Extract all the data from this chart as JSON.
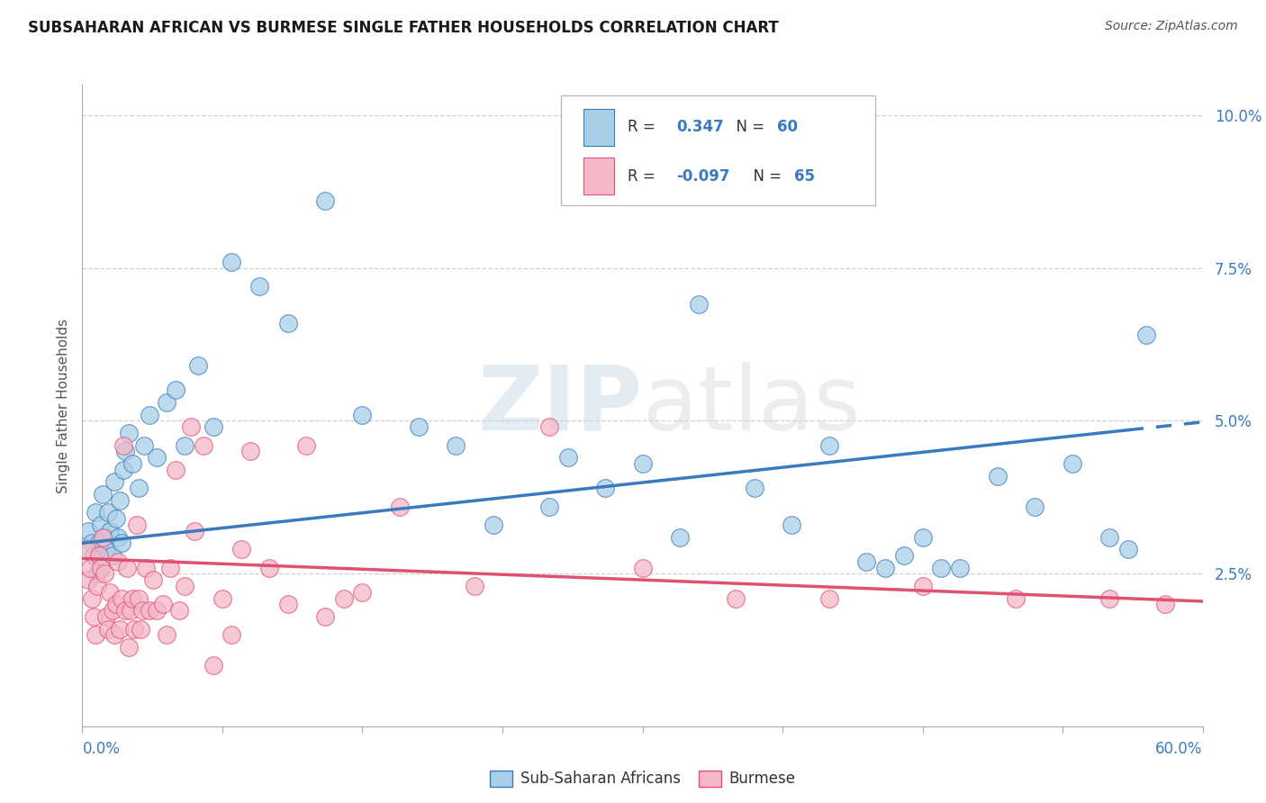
{
  "title": "SUBSAHARAN AFRICAN VS BURMESE SINGLE FATHER HOUSEHOLDS CORRELATION CHART",
  "source": "Source: ZipAtlas.com",
  "ylabel": "Single Father Households",
  "legend1_r": "0.347",
  "legend1_n": "60",
  "legend2_r": "-0.097",
  "legend2_n": "65",
  "legend_label1": "Sub-Saharan Africans",
  "legend_label2": "Burmese",
  "color_blue": "#a8cfe8",
  "color_pink": "#f4b8c8",
  "color_blue_line": "#3a7abf",
  "color_pink_line": "#e05070",
  "color_blue_text": "#3a7abf",
  "watermark_zip": "ZIP",
  "watermark_atlas": "atlas",
  "blue_x": [
    0.3,
    0.5,
    0.6,
    0.7,
    0.8,
    0.9,
    1.0,
    1.1,
    1.2,
    1.3,
    1.4,
    1.5,
    1.6,
    1.7,
    1.8,
    1.9,
    2.0,
    2.1,
    2.2,
    2.3,
    2.5,
    2.7,
    3.0,
    3.3,
    3.6,
    4.0,
    4.5,
    5.0,
    5.5,
    6.2,
    7.0,
    8.0,
    9.5,
    11.0,
    13.0,
    15.0,
    18.0,
    20.0,
    22.0,
    25.0,
    28.0,
    30.0,
    33.0,
    36.0,
    38.0,
    40.0,
    43.0,
    45.0,
    47.0,
    49.0,
    51.0,
    53.0,
    55.0,
    56.0,
    57.0,
    32.0,
    42.0,
    26.0,
    46.0,
    44.0
  ],
  "blue_y": [
    3.2,
    3.0,
    2.8,
    3.5,
    2.5,
    3.0,
    3.3,
    3.8,
    3.1,
    2.9,
    3.5,
    3.2,
    2.8,
    4.0,
    3.4,
    3.1,
    3.7,
    3.0,
    4.2,
    4.5,
    4.8,
    4.3,
    3.9,
    4.6,
    5.1,
    4.4,
    5.3,
    5.5,
    4.6,
    5.9,
    4.9,
    7.6,
    7.2,
    6.6,
    8.6,
    5.1,
    4.9,
    4.6,
    3.3,
    3.6,
    3.9,
    4.3,
    6.9,
    3.9,
    3.3,
    4.6,
    2.6,
    3.1,
    2.6,
    4.1,
    3.6,
    4.3,
    3.1,
    2.9,
    6.4,
    3.1,
    2.7,
    4.4,
    2.6,
    2.8
  ],
  "pink_x": [
    0.2,
    0.3,
    0.4,
    0.5,
    0.6,
    0.7,
    0.8,
    0.9,
    1.0,
    1.1,
    1.2,
    1.3,
    1.4,
    1.5,
    1.6,
    1.7,
    1.8,
    1.9,
    2.0,
    2.1,
    2.2,
    2.3,
    2.4,
    2.5,
    2.6,
    2.7,
    2.8,
    2.9,
    3.0,
    3.1,
    3.2,
    3.4,
    3.6,
    3.8,
    4.0,
    4.3,
    4.7,
    5.2,
    5.8,
    6.5,
    7.5,
    8.5,
    10.0,
    12.0,
    14.0,
    17.0,
    21.0,
    25.0,
    30.0,
    35.0,
    40.0,
    45.0,
    50.0,
    55.0,
    58.0,
    4.5,
    5.0,
    5.5,
    6.0,
    7.0,
    8.0,
    9.0,
    11.0,
    13.0,
    15.0
  ],
  "pink_y": [
    2.9,
    2.4,
    2.6,
    2.1,
    1.8,
    1.5,
    2.3,
    2.8,
    2.6,
    3.1,
    2.5,
    1.8,
    1.6,
    2.2,
    1.9,
    1.5,
    2.0,
    2.7,
    1.6,
    2.1,
    4.6,
    1.9,
    2.6,
    1.3,
    1.9,
    2.1,
    1.6,
    3.3,
    2.1,
    1.6,
    1.9,
    2.6,
    1.9,
    2.4,
    1.9,
    2.0,
    2.6,
    1.9,
    4.9,
    4.6,
    2.1,
    2.9,
    2.6,
    4.6,
    2.1,
    3.6,
    2.3,
    4.9,
    2.6,
    2.1,
    2.1,
    2.3,
    2.1,
    2.1,
    2.0,
    1.5,
    4.2,
    2.3,
    3.2,
    1.0,
    1.5,
    4.5,
    2.0,
    1.8,
    2.2
  ],
  "blue_trend_x0": 0.0,
  "blue_trend_y0": 3.0,
  "blue_trend_x1": 56.0,
  "blue_trend_y1": 4.85,
  "blue_dash_x0": 56.0,
  "blue_dash_y0": 4.85,
  "blue_dash_x1": 60.0,
  "blue_dash_y1": 4.98,
  "pink_trend_x0": 0.0,
  "pink_trend_y0": 2.75,
  "pink_trend_x1": 60.0,
  "pink_trend_y1": 2.05,
  "xmin": 0.0,
  "xmax": 60.0,
  "ymin": 0.0,
  "ymax": 10.5,
  "background": "#ffffff",
  "grid_color": "#d0d0d0",
  "ytick_vals": [
    0.0,
    2.5,
    5.0,
    7.5,
    10.0
  ],
  "ytick_labels": [
    "",
    "2.5%",
    "5.0%",
    "7.5%",
    "10.0%"
  ],
  "xtick_count": 9
}
